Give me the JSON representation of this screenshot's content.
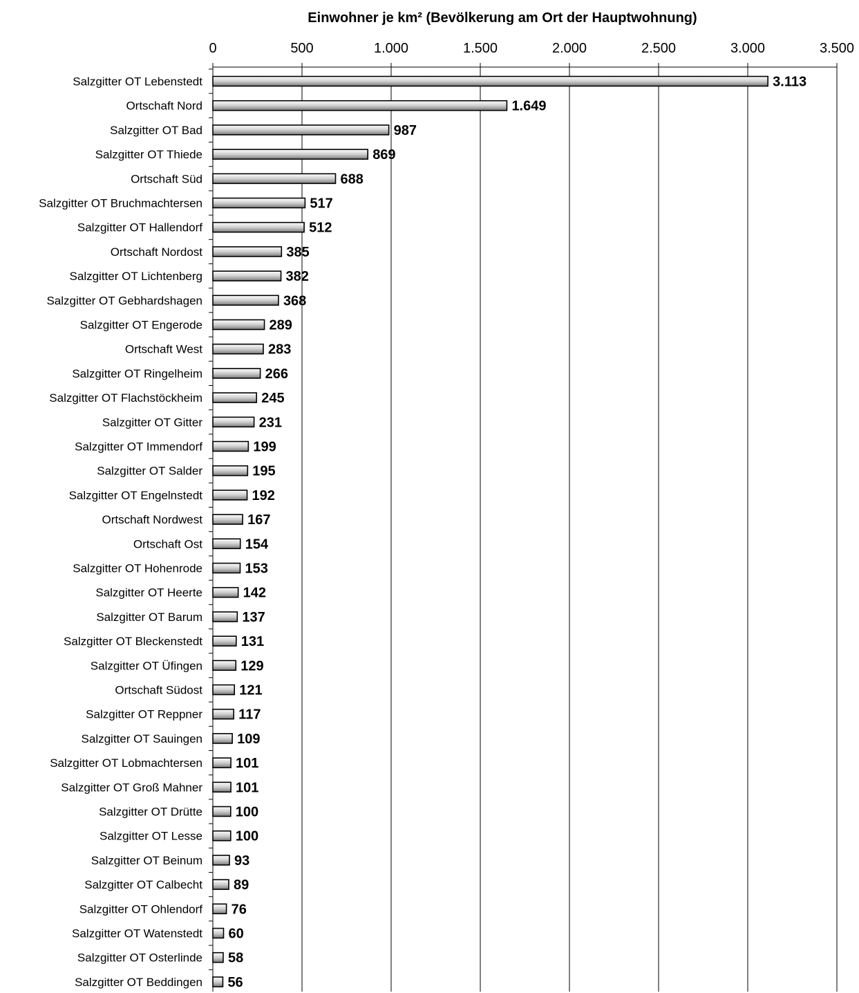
{
  "chart_data": {
    "type": "bar",
    "orientation": "horizontal",
    "title": "Einwohner je km² (Bevölkerung am Ort der Hauptwohnung)",
    "xlabel": "",
    "ylabel": "",
    "xlim": [
      0,
      3500
    ],
    "x_ticks": [
      0,
      500,
      1000,
      1500,
      2000,
      2500,
      3000,
      3500
    ],
    "x_tick_labels": [
      "0",
      "500",
      "1.000",
      "1.500",
      "2.000",
      "2.500",
      "3.000",
      "3.500"
    ],
    "x_axis_position": "top",
    "grid": true,
    "legend": "none",
    "categories": [
      "Salzgitter OT Lebenstedt",
      "Ortschaft Nord",
      "Salzgitter OT Bad",
      "Salzgitter OT Thiede",
      "Ortschaft Süd",
      "Salzgitter OT Bruchmachtersen",
      "Salzgitter OT Hallendorf",
      "Ortschaft Nordost",
      "Salzgitter OT Lichtenberg",
      "Salzgitter OT Gebhardshagen",
      "Salzgitter OT Engerode",
      "Ortschaft West",
      "Salzgitter OT Ringelheim",
      "Salzgitter OT Flachstöckheim",
      "Salzgitter OT Gitter",
      "Salzgitter OT Immendorf",
      "Salzgitter OT Salder",
      "Salzgitter OT Engelnstedt",
      "Ortschaft Nordwest",
      "Ortschaft Ost",
      "Salzgitter OT Hohenrode",
      "Salzgitter OT Heerte",
      "Salzgitter OT Barum",
      "Salzgitter OT Bleckenstedt",
      "Salzgitter OT Üfingen",
      "Ortschaft Südost",
      "Salzgitter OT Reppner",
      "Salzgitter OT Sauingen",
      "Salzgitter OT Lobmachtersen",
      "Salzgitter OT Groß Mahner",
      "Salzgitter OT Drütte",
      "Salzgitter OT Lesse",
      "Salzgitter OT Beinum",
      "Salzgitter OT Calbecht",
      "Salzgitter OT Ohlendorf",
      "Salzgitter OT Watenstedt",
      "Salzgitter OT Osterlinde",
      "Salzgitter OT Beddingen"
    ],
    "values": [
      3113,
      1649,
      987,
      869,
      688,
      517,
      512,
      385,
      382,
      368,
      289,
      283,
      266,
      245,
      231,
      199,
      195,
      192,
      167,
      154,
      153,
      142,
      137,
      131,
      129,
      121,
      117,
      109,
      101,
      101,
      100,
      100,
      93,
      89,
      76,
      60,
      58,
      56
    ],
    "value_labels": [
      "3.113",
      "1.649",
      "987",
      "869",
      "688",
      "517",
      "512",
      "385",
      "382",
      "368",
      "289",
      "283",
      "266",
      "245",
      "231",
      "199",
      "195",
      "192",
      "167",
      "154",
      "153",
      "142",
      "137",
      "131",
      "129",
      "121",
      "117",
      "109",
      "101",
      "101",
      "100",
      "100",
      "93",
      "89",
      "76",
      "60",
      "58",
      "56"
    ],
    "bar_colors": {
      "light": "#ffffff",
      "dark": "#7a7a7a",
      "edge": "#000000"
    }
  }
}
